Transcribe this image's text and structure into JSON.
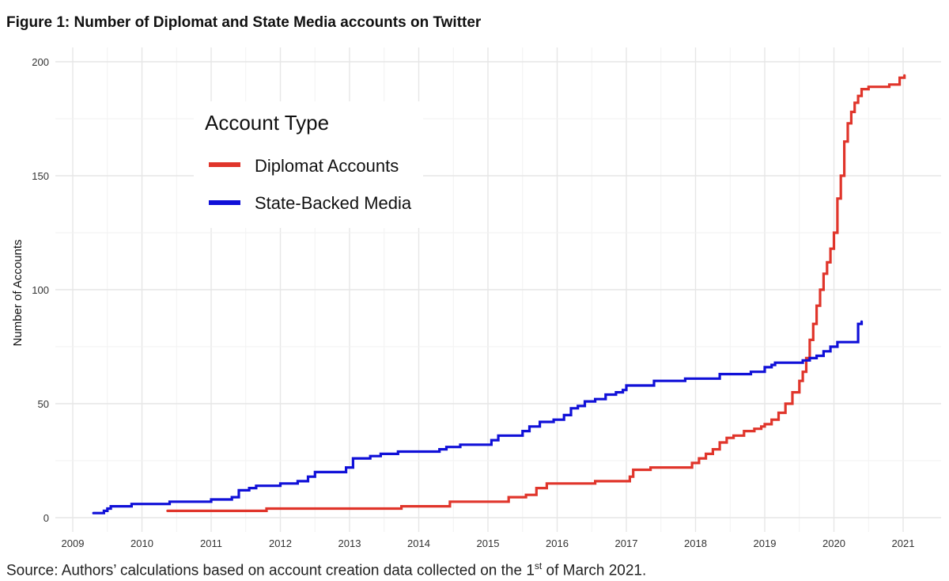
{
  "figure": {
    "title": "Figure 1: Number of Diplomat and State Media accounts on Twitter",
    "source_prefix": "Source: Authors’ calculations based on account creation data collected on the 1",
    "source_sup": "st",
    "source_suffix": " of March 2021."
  },
  "chart_data": {
    "type": "line",
    "title": "Figure 1: Number of Diplomat and State Media accounts on Twitter",
    "xlabel": "",
    "ylabel": "Number of Accounts",
    "xlim": [
      2009,
      2021.5
    ],
    "ylim": [
      0,
      200
    ],
    "xticks": [
      2009,
      2010,
      2011,
      2012,
      2013,
      2014,
      2015,
      2016,
      2017,
      2018,
      2019,
      2020,
      2021
    ],
    "yticks": [
      0,
      50,
      100,
      150,
      200
    ],
    "grid": true,
    "legend": {
      "title": "Account Type",
      "placement": "top-left",
      "entries": [
        "Diplomat Accounts",
        "State-Backed Media"
      ]
    },
    "colors": {
      "diplomat": "#e0352b",
      "state_media": "#1010d8",
      "grid": "#e6e6e6"
    },
    "series": [
      {
        "name": "Diplomat Accounts",
        "color": "#e0352b",
        "x": [
          2010.37,
          2011.8,
          2013.75,
          2014.3,
          2014.45,
          2015.0,
          2015.3,
          2015.55,
          2015.7,
          2015.85,
          2016.0,
          2016.55,
          2017.0,
          2017.05,
          2017.1,
          2017.35,
          2017.8,
          2017.95,
          2018.05,
          2018.15,
          2018.25,
          2018.35,
          2018.45,
          2018.55,
          2018.7,
          2018.85,
          2018.95,
          2019.0,
          2019.1,
          2019.2,
          2019.3,
          2019.4,
          2019.5,
          2019.55,
          2019.6,
          2019.65,
          2019.7,
          2019.75,
          2019.8,
          2019.85,
          2019.9,
          2019.95,
          2020.0,
          2020.05,
          2020.1,
          2020.15,
          2020.2,
          2020.25,
          2020.3,
          2020.35,
          2020.4,
          2020.5,
          2020.65,
          2020.8,
          2020.95,
          2021.02
        ],
        "values": [
          3,
          4,
          5,
          5,
          7,
          7,
          9,
          10,
          13,
          15,
          15,
          16,
          16,
          18,
          21,
          22,
          22,
          24,
          26,
          28,
          30,
          33,
          35,
          36,
          38,
          39,
          40,
          41,
          43,
          46,
          50,
          55,
          60,
          64,
          70,
          78,
          85,
          93,
          100,
          107,
          112,
          118,
          125,
          140,
          150,
          165,
          173,
          178,
          182,
          185,
          188,
          189,
          189,
          190,
          193,
          194
        ]
      },
      {
        "name": "State-Backed Media",
        "color": "#1010d8",
        "x": [
          2009.3,
          2009.45,
          2009.5,
          2009.55,
          2009.85,
          2010.4,
          2011.0,
          2011.3,
          2011.4,
          2011.55,
          2011.65,
          2012.0,
          2012.25,
          2012.4,
          2012.5,
          2012.95,
          2013.05,
          2013.3,
          2013.45,
          2013.7,
          2014.3,
          2014.4,
          2014.6,
          2015.05,
          2015.15,
          2015.5,
          2015.6,
          2015.75,
          2015.95,
          2016.1,
          2016.2,
          2016.3,
          2016.4,
          2016.55,
          2016.7,
          2016.85,
          2016.95,
          2017.0,
          2017.4,
          2017.85,
          2018.35,
          2018.8,
          2019.0,
          2019.1,
          2019.15,
          2019.25,
          2019.55,
          2019.65,
          2019.75,
          2019.85,
          2019.95,
          2020.05,
          2020.3,
          2020.35,
          2020.4
        ],
        "values": [
          2,
          3,
          4,
          5,
          6,
          7,
          8,
          9,
          12,
          13,
          14,
          15,
          16,
          18,
          20,
          22,
          26,
          27,
          28,
          29,
          30,
          31,
          32,
          34,
          36,
          38,
          40,
          42,
          43,
          45,
          48,
          49,
          51,
          52,
          54,
          55,
          56,
          58,
          60,
          61,
          63,
          64,
          66,
          67,
          68,
          68,
          69,
          70,
          71,
          73,
          75,
          77,
          77,
          85,
          86
        ]
      }
    ]
  }
}
